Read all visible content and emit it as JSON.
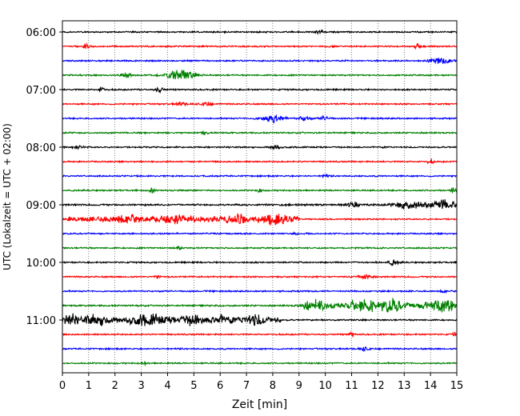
{
  "chart_data": {
    "type": "line",
    "subtype": "helicorder",
    "xlabel": "Zeit  [min]",
    "ylabel": "UTC (Lokalzeit = UTC + 02:00)",
    "xlim": [
      0,
      15
    ],
    "x_ticks": [
      "0",
      "1",
      "2",
      "3",
      "4",
      "5",
      "6",
      "7",
      "8",
      "9",
      "10",
      "11",
      "12",
      "13",
      "14",
      "15"
    ],
    "y_tick_labels": [
      "06:00",
      "07:00",
      "08:00",
      "09:00",
      "10:00",
      "11:00"
    ],
    "grid": "vertical dotted lines at each minute",
    "line_interval_min": 15,
    "colors": [
      "#000000",
      "#ff0000",
      "#0000ff",
      "#008000"
    ],
    "traces": [
      {
        "start": "06:00",
        "color": "#000000",
        "level": 1,
        "events": [
          {
            "t": 9.8,
            "w": 0.15,
            "a": 1.5
          }
        ]
      },
      {
        "start": "06:15",
        "color": "#ff0000",
        "level": 1,
        "events": [
          {
            "t": 0.9,
            "w": 0.1,
            "a": 2.5
          },
          {
            "t": 13.5,
            "w": 0.1,
            "a": 2
          }
        ]
      },
      {
        "start": "06:30",
        "color": "#0000ff",
        "level": 1,
        "events": [
          {
            "t": 14.4,
            "w": 0.35,
            "a": 3.5
          }
        ]
      },
      {
        "start": "06:45",
        "color": "#008000",
        "level": 1,
        "events": [
          {
            "t": 2.4,
            "w": 0.2,
            "a": 2
          },
          {
            "t": 4.5,
            "w": 0.5,
            "a": 4.5
          }
        ]
      },
      {
        "start": "07:00",
        "color": "#000000",
        "level": 1,
        "events": [
          {
            "t": 1.5,
            "w": 0.1,
            "a": 2.5
          },
          {
            "t": 3.7,
            "w": 0.15,
            "a": 2
          }
        ]
      },
      {
        "start": "07:15",
        "color": "#ff0000",
        "level": 1,
        "events": [
          {
            "t": 4.5,
            "w": 0.2,
            "a": 1.5
          },
          {
            "t": 5.5,
            "w": 0.2,
            "a": 1.5
          }
        ]
      },
      {
        "start": "07:30",
        "color": "#0000ff",
        "level": 1,
        "events": [
          {
            "t": 8.0,
            "w": 0.45,
            "a": 3
          },
          {
            "t": 9.2,
            "w": 0.2,
            "a": 2
          },
          {
            "t": 10.0,
            "w": 0.2,
            "a": 1.5
          }
        ]
      },
      {
        "start": "07:45",
        "color": "#008000",
        "level": 1,
        "events": [
          {
            "t": 5.4,
            "w": 0.1,
            "a": 2
          }
        ]
      },
      {
        "start": "08:00",
        "color": "#000000",
        "level": 1,
        "events": [
          {
            "t": 8.1,
            "w": 0.15,
            "a": 2.5
          },
          {
            "t": 0.5,
            "w": 0.3,
            "a": 1.2
          }
        ]
      },
      {
        "start": "08:15",
        "color": "#ff0000",
        "level": 1,
        "events": [
          {
            "t": 14.0,
            "w": 0.1,
            "a": 2
          }
        ]
      },
      {
        "start": "08:30",
        "color": "#0000ff",
        "level": 1,
        "events": [
          {
            "t": 10.0,
            "w": 0.1,
            "a": 1.5
          }
        ]
      },
      {
        "start": "08:45",
        "color": "#008000",
        "level": 1,
        "events": [
          {
            "t": 3.4,
            "w": 0.1,
            "a": 2
          },
          {
            "t": 7.5,
            "w": 0.1,
            "a": 1.5
          },
          {
            "t": 14.9,
            "w": 0.1,
            "a": 2.5
          }
        ]
      },
      {
        "start": "09:00",
        "color": "#000000",
        "level": 1.2,
        "events": [
          {
            "t": 11.0,
            "w": 0.25,
            "a": 2.5
          },
          {
            "t": 13.2,
            "w": 0.5,
            "a": 4
          },
          {
            "t": 14.5,
            "w": 0.5,
            "a": 4
          }
        ]
      },
      {
        "start": "09:15",
        "color": "#ff0000",
        "level": 3.5,
        "active_range": [
          0.2,
          9.0
        ],
        "events": [
          {
            "t": 2.4,
            "w": 0.5,
            "a": 2.5
          },
          {
            "t": 4.2,
            "w": 0.5,
            "a": 2.5
          },
          {
            "t": 6.7,
            "w": 0.4,
            "a": 3
          },
          {
            "t": 8.1,
            "w": 0.4,
            "a": 3.5
          }
        ]
      },
      {
        "start": "09:30",
        "color": "#0000ff",
        "level": 1,
        "events": [
          {
            "t": 8.8,
            "w": 0.1,
            "a": 1.5
          }
        ]
      },
      {
        "start": "09:45",
        "color": "#008000",
        "level": 1,
        "events": [
          {
            "t": 4.4,
            "w": 0.1,
            "a": 2
          }
        ]
      },
      {
        "start": "10:00",
        "color": "#000000",
        "level": 1,
        "events": [
          {
            "t": 12.6,
            "w": 0.2,
            "a": 2
          }
        ]
      },
      {
        "start": "10:15",
        "color": "#ff0000",
        "level": 1,
        "events": [
          {
            "t": 11.5,
            "w": 0.3,
            "a": 1.5
          },
          {
            "t": 3.6,
            "w": 0.1,
            "a": 1.5
          }
        ]
      },
      {
        "start": "10:30",
        "color": "#0000ff",
        "level": 1,
        "events": [
          {
            "t": 14.5,
            "w": 0.1,
            "a": 1.5
          }
        ]
      },
      {
        "start": "10:45",
        "color": "#008000",
        "level": 1.1,
        "active_range": [
          9.2,
          15.0
        ],
        "active_level": 3.5,
        "events": [
          {
            "t": 9.6,
            "w": 0.4,
            "a": 4
          },
          {
            "t": 11.4,
            "w": 0.5,
            "a": 5
          },
          {
            "t": 12.5,
            "w": 0.4,
            "a": 4.5
          },
          {
            "t": 14.4,
            "w": 0.5,
            "a": 4.5
          }
        ]
      },
      {
        "start": "11:00",
        "color": "#000000",
        "level": 4,
        "active_range": [
          0.0,
          8.3
        ],
        "events": [
          {
            "t": 0.3,
            "w": 0.2,
            "a": 4
          },
          {
            "t": 1.3,
            "w": 0.4,
            "a": 3.5
          },
          {
            "t": 3.3,
            "w": 0.6,
            "a": 3.5
          },
          {
            "t": 4.9,
            "w": 0.4,
            "a": 3
          },
          {
            "t": 6.0,
            "w": 0.3,
            "a": 2.5
          },
          {
            "t": 7.3,
            "w": 0.4,
            "a": 3
          }
        ]
      },
      {
        "start": "11:15",
        "color": "#ff0000",
        "level": 1,
        "events": [
          {
            "t": 11.0,
            "w": 0.1,
            "a": 2
          },
          {
            "t": 14.9,
            "w": 0.05,
            "a": 2
          }
        ]
      },
      {
        "start": "11:30",
        "color": "#0000ff",
        "level": 1,
        "events": [
          {
            "t": 11.5,
            "w": 0.2,
            "a": 1.2
          }
        ]
      },
      {
        "start": "11:45",
        "color": "#008000",
        "level": 1,
        "events": [
          {
            "t": 3.1,
            "w": 0.1,
            "a": 1.5
          }
        ]
      }
    ]
  }
}
